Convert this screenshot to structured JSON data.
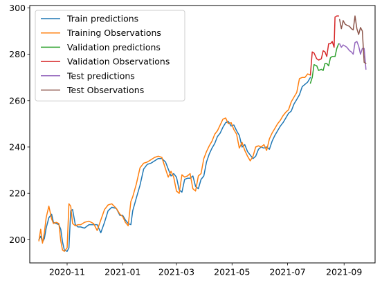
{
  "chart_data": {
    "type": "line",
    "title": "",
    "xlabel": "",
    "ylabel": "",
    "x_range": [
      "2020-09-21",
      "2021-10-05"
    ],
    "ylim": [
      190,
      301
    ],
    "x_ticks": [
      "2020-11",
      "2021-01",
      "2021-03",
      "2021-05",
      "2021-07",
      "2021-09"
    ],
    "y_ticks": [
      200,
      220,
      240,
      260,
      280,
      300
    ],
    "grid": false,
    "legend_position": "upper-left",
    "series": [
      {
        "name": "Train predictions",
        "color": "#1f77b4",
        "points": [
          [
            "2020-10-01",
            200.0
          ],
          [
            "2020-10-03",
            201.5
          ],
          [
            "2020-10-05",
            199.0
          ],
          [
            "2020-10-07",
            200.5
          ],
          [
            "2020-10-09",
            205.0
          ],
          [
            "2020-10-12",
            209.5
          ],
          [
            "2020-10-15",
            211.0
          ],
          [
            "2020-10-17",
            207.5
          ],
          [
            "2020-10-20",
            207.0
          ],
          [
            "2020-10-23",
            206.5
          ],
          [
            "2020-10-25",
            204.5
          ],
          [
            "2020-10-27",
            199.0
          ],
          [
            "2020-10-29",
            195.5
          ],
          [
            "2020-11-01",
            195.0
          ],
          [
            "2020-11-03",
            196.5
          ],
          [
            "2020-11-05",
            212.5
          ],
          [
            "2020-11-07",
            213.0
          ],
          [
            "2020-11-10",
            206.5
          ],
          [
            "2020-11-13",
            205.5
          ],
          [
            "2020-11-16",
            205.5
          ],
          [
            "2020-11-20",
            205.0
          ],
          [
            "2020-11-25",
            206.5
          ],
          [
            "2020-11-30",
            206.5
          ],
          [
            "2020-12-04",
            206.5
          ],
          [
            "2020-12-08",
            203.0
          ],
          [
            "2020-12-12",
            207.5
          ],
          [
            "2020-12-16",
            212.5
          ],
          [
            "2020-12-20",
            214.0
          ],
          [
            "2020-12-25",
            213.5
          ],
          [
            "2020-12-29",
            210.5
          ],
          [
            "2021-01-01",
            210.5
          ],
          [
            "2021-01-04",
            208.5
          ],
          [
            "2021-01-07",
            207.0
          ],
          [
            "2021-01-10",
            206.5
          ],
          [
            "2021-01-12",
            212.5
          ],
          [
            "2021-01-16",
            218.0
          ],
          [
            "2021-01-20",
            223.5
          ],
          [
            "2021-01-24",
            230.5
          ],
          [
            "2021-01-28",
            232.5
          ],
          [
            "2021-02-01",
            233.0
          ],
          [
            "2021-02-05",
            234.0
          ],
          [
            "2021-02-09",
            235.0
          ],
          [
            "2021-02-13",
            235.0
          ],
          [
            "2021-02-17",
            233.5
          ],
          [
            "2021-02-20",
            230.5
          ],
          [
            "2021-02-23",
            227.5
          ],
          [
            "2021-02-26",
            228.5
          ],
          [
            "2021-03-01",
            227.0
          ],
          [
            "2021-03-04",
            221.5
          ],
          [
            "2021-03-07",
            220.5
          ],
          [
            "2021-03-10",
            226.0
          ],
          [
            "2021-03-13",
            226.5
          ],
          [
            "2021-03-16",
            226.5
          ],
          [
            "2021-03-19",
            227.5
          ],
          [
            "2021-03-22",
            223.0
          ],
          [
            "2021-03-25",
            222.0
          ],
          [
            "2021-03-28",
            226.0
          ],
          [
            "2021-03-31",
            227.5
          ],
          [
            "2021-04-03",
            233.5
          ],
          [
            "2021-04-06",
            237.0
          ],
          [
            "2021-04-09",
            239.5
          ],
          [
            "2021-04-12",
            241.5
          ],
          [
            "2021-04-15",
            244.5
          ],
          [
            "2021-04-18",
            246.0
          ],
          [
            "2021-04-21",
            248.5
          ],
          [
            "2021-04-24",
            250.5
          ],
          [
            "2021-04-27",
            251.0
          ],
          [
            "2021-04-30",
            249.0
          ],
          [
            "2021-05-03",
            249.5
          ],
          [
            "2021-05-06",
            247.0
          ],
          [
            "2021-05-09",
            245.0
          ],
          [
            "2021-05-12",
            240.0
          ],
          [
            "2021-05-15",
            241.0
          ],
          [
            "2021-05-18",
            238.0
          ],
          [
            "2021-05-21",
            236.5
          ],
          [
            "2021-05-24",
            235.0
          ],
          [
            "2021-05-27",
            236.0
          ],
          [
            "2021-05-30",
            239.0
          ],
          [
            "2021-06-02",
            240.0
          ],
          [
            "2021-06-05",
            239.5
          ],
          [
            "2021-06-08",
            240.0
          ],
          [
            "2021-06-11",
            239.0
          ],
          [
            "2021-06-14",
            242.5
          ],
          [
            "2021-06-17",
            245.0
          ],
          [
            "2021-06-20",
            247.0
          ],
          [
            "2021-06-23",
            249.0
          ],
          [
            "2021-06-26",
            250.5
          ],
          [
            "2021-06-29",
            252.5
          ],
          [
            "2021-07-02",
            254.5
          ],
          [
            "2021-07-05",
            255.5
          ],
          [
            "2021-07-08",
            258.5
          ],
          [
            "2021-07-11",
            260.5
          ],
          [
            "2021-07-14",
            262.5
          ],
          [
            "2021-07-17",
            266.0
          ],
          [
            "2021-07-20",
            267.0
          ],
          [
            "2021-07-23",
            268.0
          ],
          [
            "2021-07-26",
            270.0
          ]
        ]
      },
      {
        "name": "Training Observations",
        "color": "#ff7f0e",
        "points": [
          [
            "2020-10-01",
            199.5
          ],
          [
            "2020-10-03",
            204.5
          ],
          [
            "2020-10-05",
            198.5
          ],
          [
            "2020-10-07",
            203.0
          ],
          [
            "2020-10-09",
            209.5
          ],
          [
            "2020-10-12",
            214.5
          ],
          [
            "2020-10-15",
            209.0
          ],
          [
            "2020-10-17",
            207.0
          ],
          [
            "2020-10-20",
            207.5
          ],
          [
            "2020-10-23",
            207.0
          ],
          [
            "2020-10-25",
            199.5
          ],
          [
            "2020-10-27",
            195.5
          ],
          [
            "2020-10-29",
            195.0
          ],
          [
            "2020-11-01",
            196.5
          ],
          [
            "2020-11-03",
            215.5
          ],
          [
            "2020-11-05",
            214.5
          ],
          [
            "2020-11-07",
            207.0
          ],
          [
            "2020-11-10",
            206.0
          ],
          [
            "2020-11-13",
            206.5
          ],
          [
            "2020-11-16",
            206.5
          ],
          [
            "2020-11-20",
            207.5
          ],
          [
            "2020-11-25",
            208.0
          ],
          [
            "2020-11-30",
            207.0
          ],
          [
            "2020-12-04",
            204.0
          ],
          [
            "2020-12-08",
            208.5
          ],
          [
            "2020-12-12",
            213.0
          ],
          [
            "2020-12-16",
            215.0
          ],
          [
            "2020-12-20",
            215.5
          ],
          [
            "2020-12-25",
            213.5
          ],
          [
            "2020-12-29",
            211.0
          ],
          [
            "2021-01-01",
            210.0
          ],
          [
            "2021-01-04",
            207.5
          ],
          [
            "2021-01-07",
            206.0
          ],
          [
            "2021-01-10",
            216.5
          ],
          [
            "2021-01-12",
            218.5
          ],
          [
            "2021-01-16",
            224.0
          ],
          [
            "2021-01-20",
            231.0
          ],
          [
            "2021-01-24",
            233.0
          ],
          [
            "2021-01-28",
            233.5
          ],
          [
            "2021-02-01",
            234.5
          ],
          [
            "2021-02-05",
            235.5
          ],
          [
            "2021-02-09",
            236.0
          ],
          [
            "2021-02-13",
            235.5
          ],
          [
            "2021-02-17",
            230.5
          ],
          [
            "2021-02-20",
            227.0
          ],
          [
            "2021-02-23",
            229.5
          ],
          [
            "2021-02-26",
            227.0
          ],
          [
            "2021-03-01",
            221.0
          ],
          [
            "2021-03-04",
            220.0
          ],
          [
            "2021-03-07",
            228.0
          ],
          [
            "2021-03-10",
            227.0
          ],
          [
            "2021-03-13",
            227.5
          ],
          [
            "2021-03-16",
            228.5
          ],
          [
            "2021-03-19",
            222.0
          ],
          [
            "2021-03-22",
            221.0
          ],
          [
            "2021-03-25",
            227.5
          ],
          [
            "2021-03-28",
            228.5
          ],
          [
            "2021-03-31",
            235.0
          ],
          [
            "2021-04-03",
            238.0
          ],
          [
            "2021-04-06",
            240.5
          ],
          [
            "2021-04-09",
            242.5
          ],
          [
            "2021-04-12",
            245.5
          ],
          [
            "2021-04-15",
            247.0
          ],
          [
            "2021-04-18",
            249.5
          ],
          [
            "2021-04-21",
            252.0
          ],
          [
            "2021-04-24",
            252.5
          ],
          [
            "2021-04-27",
            250.0
          ],
          [
            "2021-04-30",
            250.5
          ],
          [
            "2021-05-03",
            247.5
          ],
          [
            "2021-05-06",
            245.5
          ],
          [
            "2021-05-09",
            239.5
          ],
          [
            "2021-05-12",
            242.0
          ],
          [
            "2021-05-15",
            238.5
          ],
          [
            "2021-05-18",
            236.0
          ],
          [
            "2021-05-21",
            234.0
          ],
          [
            "2021-05-24",
            236.0
          ],
          [
            "2021-05-27",
            240.0
          ],
          [
            "2021-05-30",
            240.5
          ],
          [
            "2021-06-02",
            240.0
          ],
          [
            "2021-06-05",
            241.0
          ],
          [
            "2021-06-08",
            238.5
          ],
          [
            "2021-06-11",
            243.5
          ],
          [
            "2021-06-14",
            246.0
          ],
          [
            "2021-06-17",
            248.0
          ],
          [
            "2021-06-20",
            250.0
          ],
          [
            "2021-06-23",
            251.5
          ],
          [
            "2021-06-26",
            253.5
          ],
          [
            "2021-06-29",
            255.0
          ],
          [
            "2021-07-02",
            256.0
          ],
          [
            "2021-07-05",
            259.5
          ],
          [
            "2021-07-08",
            261.5
          ],
          [
            "2021-07-11",
            263.5
          ],
          [
            "2021-07-14",
            269.5
          ],
          [
            "2021-07-17",
            270.0
          ],
          [
            "2021-07-20",
            270.0
          ],
          [
            "2021-07-23",
            271.5
          ],
          [
            "2021-07-26",
            271.0
          ]
        ]
      },
      {
        "name": "Validation predictions",
        "color": "#2ca02c",
        "points": [
          [
            "2021-07-26",
            267.5
          ],
          [
            "2021-07-28",
            270.0
          ],
          [
            "2021-07-30",
            275.5
          ],
          [
            "2021-08-02",
            275.0
          ],
          [
            "2021-08-04",
            273.0
          ],
          [
            "2021-08-07",
            273.5
          ],
          [
            "2021-08-09",
            273.0
          ],
          [
            "2021-08-11",
            276.0
          ],
          [
            "2021-08-13",
            276.0
          ],
          [
            "2021-08-15",
            275.0
          ],
          [
            "2021-08-17",
            278.5
          ],
          [
            "2021-08-19",
            279.0
          ],
          [
            "2021-08-22",
            279.0
          ],
          [
            "2021-08-24",
            282.5
          ],
          [
            "2021-08-26",
            284.5
          ]
        ]
      },
      {
        "name": "Validation Observations",
        "color": "#d62728",
        "points": [
          [
            "2021-07-26",
            271.0
          ],
          [
            "2021-07-28",
            281.0
          ],
          [
            "2021-07-30",
            280.5
          ],
          [
            "2021-08-02",
            278.0
          ],
          [
            "2021-08-04",
            277.5
          ],
          [
            "2021-08-07",
            278.0
          ],
          [
            "2021-08-09",
            281.5
          ],
          [
            "2021-08-11",
            281.0
          ],
          [
            "2021-08-13",
            279.0
          ],
          [
            "2021-08-15",
            284.5
          ],
          [
            "2021-08-17",
            284.5
          ],
          [
            "2021-08-19",
            285.5
          ],
          [
            "2021-08-21",
            283.0
          ],
          [
            "2021-08-22",
            296.0
          ],
          [
            "2021-08-24",
            296.5
          ],
          [
            "2021-08-26",
            296.5
          ]
        ]
      },
      {
        "name": "Test predictions",
        "color": "#9467bd",
        "points": [
          [
            "2021-08-27",
            284.5
          ],
          [
            "2021-08-29",
            283.0
          ],
          [
            "2021-08-31",
            284.0
          ],
          [
            "2021-09-02",
            283.5
          ],
          [
            "2021-09-04",
            283.0
          ],
          [
            "2021-09-07",
            281.5
          ],
          [
            "2021-09-09",
            281.0
          ],
          [
            "2021-09-11",
            280.0
          ],
          [
            "2021-09-13",
            285.0
          ],
          [
            "2021-09-15",
            285.5
          ],
          [
            "2021-09-17",
            283.5
          ],
          [
            "2021-09-19",
            280.0
          ],
          [
            "2021-09-21",
            282.5
          ],
          [
            "2021-09-23",
            282.5
          ],
          [
            "2021-09-25",
            273.5
          ]
        ]
      },
      {
        "name": "Test Observations",
        "color": "#8c564b",
        "points": [
          [
            "2021-08-27",
            295.0
          ],
          [
            "2021-08-29",
            291.0
          ],
          [
            "2021-08-31",
            294.5
          ],
          [
            "2021-09-02",
            293.0
          ],
          [
            "2021-09-04",
            292.5
          ],
          [
            "2021-09-07",
            292.0
          ],
          [
            "2021-09-09",
            291.0
          ],
          [
            "2021-09-11",
            290.5
          ],
          [
            "2021-09-13",
            296.5
          ],
          [
            "2021-09-15",
            291.0
          ],
          [
            "2021-09-17",
            288.5
          ],
          [
            "2021-09-19",
            291.5
          ],
          [
            "2021-09-21",
            290.0
          ],
          [
            "2021-09-23",
            276.5
          ],
          [
            "2021-09-25",
            276.0
          ]
        ]
      }
    ]
  }
}
